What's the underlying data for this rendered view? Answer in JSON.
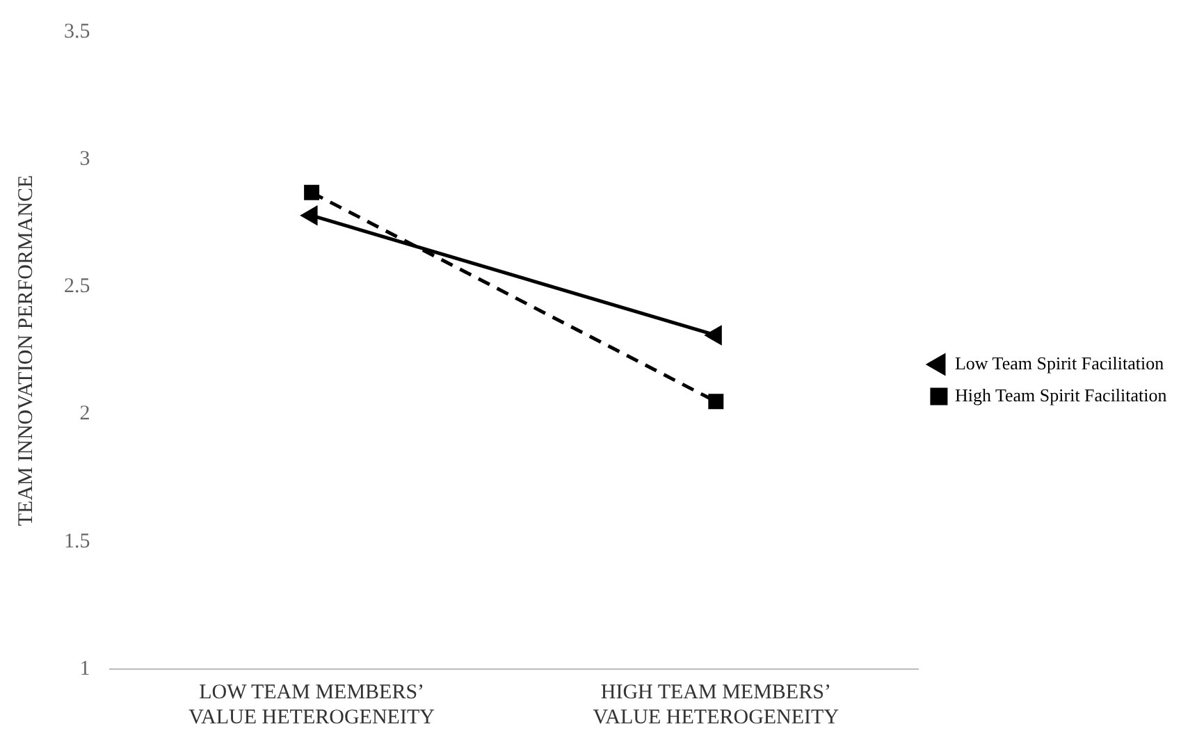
{
  "chart_data": {
    "type": "line",
    "ylabel": "TEAM INNOVATION PERFORMANCE",
    "categories": [
      "LOW TEAM MEMBERS’ VALUE HETEROGENEITY",
      "HIGH TEAM MEMBERS’ VALUE HETEROGENEITY"
    ],
    "series": [
      {
        "name": "Low Team Spirit Facilitation",
        "color": "#000000",
        "values": [
          2.78,
          2.31
        ],
        "marker": "triangle",
        "line_style": "solid"
      },
      {
        "name": "High Team Spirit Facilitation",
        "color": "#000000",
        "values": [
          2.87,
          2.05
        ],
        "marker": "square",
        "line_style": "dashed"
      }
    ],
    "ylim": [
      1,
      3.5
    ],
    "yticks": [
      1,
      1.5,
      2,
      2.5,
      3,
      3.5
    ],
    "grid": false,
    "legend": "right"
  }
}
